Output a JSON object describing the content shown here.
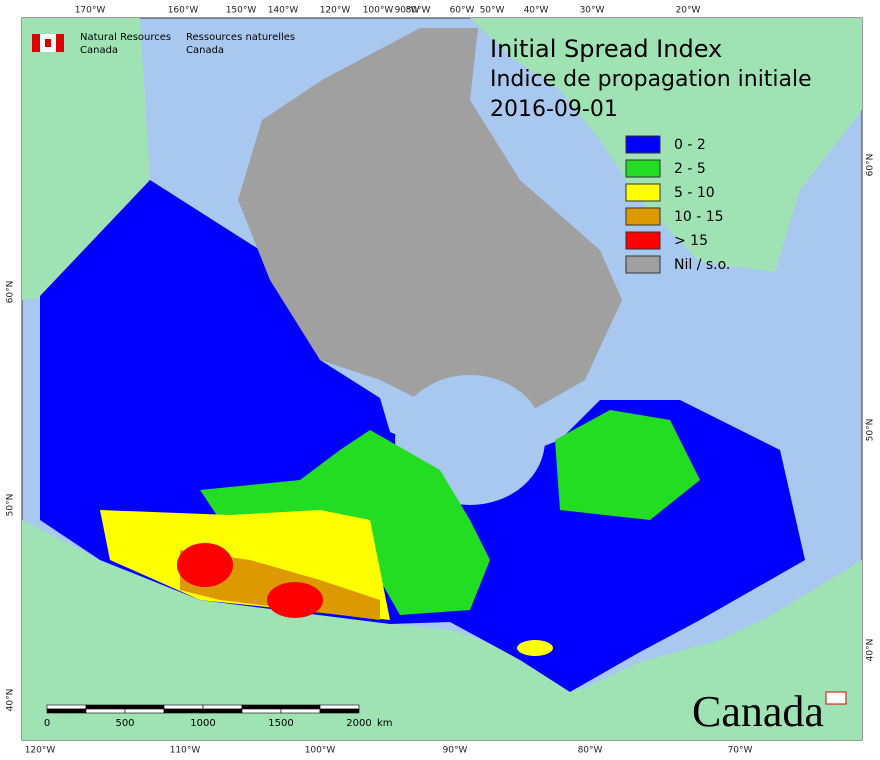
{
  "header": {
    "title": "Initial Spread Index",
    "subtitle": "Indice de propagation initiale",
    "date": "2016-09-01"
  },
  "agency": {
    "en": [
      "Natural Resources",
      "Canada"
    ],
    "fr": [
      "Ressources naturelles",
      "Canada"
    ]
  },
  "legend": [
    {
      "label": "0 - 2",
      "color": "#0000ff"
    },
    {
      "label": "2 - 5",
      "color": "#22dd22"
    },
    {
      "label": "5 - 10",
      "color": "#ffff00"
    },
    {
      "label": "10 - 15",
      "color": "#dd9900"
    },
    {
      "label": "> 15",
      "color": "#ff0000"
    },
    {
      "label": "Nil / s.o.",
      "color": "#a0a0a0"
    }
  ],
  "graticule": {
    "top": [
      "170°W",
      "160°W",
      "150°W",
      "140°W",
      "120°W",
      "100°W",
      "90°W",
      "80°W",
      "60°W",
      "50°W",
      "40°W",
      "30°W",
      "20°W"
    ],
    "bottom": [
      "120°W",
      "110°W",
      "100°W",
      "90°W",
      "80°W",
      "70°W"
    ],
    "left": [
      "60°N",
      "50°N",
      "40°N"
    ],
    "right": [
      "60°N",
      "50°N",
      "40°N"
    ]
  },
  "scale_bar": {
    "ticks": [
      "0",
      "500",
      "1000",
      "1500",
      "2000"
    ],
    "unit": "km"
  },
  "wordmark": "Canada"
}
